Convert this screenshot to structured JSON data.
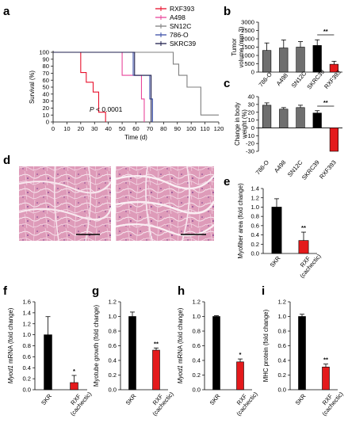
{
  "panel_letters": {
    "a": "a",
    "b": "b",
    "c": "c",
    "d": "d",
    "e": "e",
    "f": "f",
    "g": "g",
    "h": "h",
    "i": "i"
  },
  "colors": {
    "RXF393": "#e8112d",
    "A498": "#e8459a",
    "SN12C": "#7f7f7f",
    "786-O": "#3b4fa8",
    "SKRC39": "#1f1f4d",
    "gray_bar": "#6f6f6f",
    "black_bar": "#000000",
    "red_bar": "#e41a1c",
    "he_stain": "#d98fb0"
  },
  "significance": {
    "b": "**",
    "c": "**",
    "e": "**",
    "f": "*",
    "g": "**",
    "h": "*",
    "i": "**"
  },
  "annotations": {
    "pvalue_italic": "P",
    "pvalue_rest": " < 0.0001"
  },
  "chart_data": [
    {
      "panel": "a",
      "type": "line",
      "step": true,
      "xlabel": "Time (d)",
      "ylabel": "Survival (%)",
      "xlim": [
        0,
        120
      ],
      "ylim": [
        0,
        100
      ],
      "xticks": [
        0,
        10,
        20,
        30,
        40,
        50,
        60,
        70,
        80,
        90,
        100,
        110,
        120
      ],
      "yticks": [
        0,
        10,
        20,
        30,
        40,
        50,
        60,
        70,
        80,
        90,
        100
      ],
      "series": [
        {
          "name": "RXF393",
          "x": [
            0,
            20,
            24,
            29,
            33,
            38
          ],
          "y": [
            100,
            71,
            57,
            43,
            14,
            0
          ]
        },
        {
          "name": "A498",
          "x": [
            0,
            50,
            64,
            66
          ],
          "y": [
            100,
            67,
            33,
            0
          ]
        },
        {
          "name": "SN12C",
          "x": [
            0,
            87,
            91,
            97,
            107,
            113,
            120
          ],
          "y": [
            100,
            83,
            67,
            50,
            10,
            10,
            10
          ]
        },
        {
          "name": "786-O",
          "x": [
            0,
            58,
            70,
            72
          ],
          "y": [
            100,
            67,
            33,
            0
          ]
        },
        {
          "name": "SKRC39",
          "x": [
            0,
            59,
            71
          ],
          "y": [
            100,
            67,
            0
          ]
        }
      ]
    },
    {
      "panel": "b",
      "type": "bar",
      "ylabel": "Tumor volume (mm 3)",
      "ylim": [
        0,
        3000
      ],
      "yticks": [
        0,
        500,
        1000,
        1500,
        2000,
        2500,
        3000
      ],
      "categories": [
        "786-O",
        "A498",
        "SN12C",
        "SKRC39",
        "RXF393"
      ],
      "values": [
        1300,
        1450,
        1500,
        1600,
        470
      ],
      "errors": [
        450,
        480,
        330,
        340,
        180
      ]
    },
    {
      "panel": "c",
      "type": "bar",
      "ylabel": "Change in body weight (%)",
      "ylim": [
        -30,
        40
      ],
      "yticks": [
        -30,
        -20,
        -10,
        0,
        10,
        20,
        30,
        40
      ],
      "categories": [
        "786-O",
        "A498",
        "SN12C",
        "SKRC39",
        "RXF393"
      ],
      "values": [
        29,
        24,
        26,
        19,
        -30
      ],
      "errors": [
        3,
        2,
        3,
        3,
        0
      ]
    },
    {
      "panel": "e",
      "type": "bar",
      "ylabel": "Myofiber area (fold change)",
      "ylim": [
        0,
        1.4
      ],
      "yticks": [
        0,
        0.2,
        0.4,
        0.6,
        0.8,
        1.0,
        1.2,
        1.4
      ],
      "categories": [
        "SKR",
        "RXF (cachectic)"
      ],
      "values": [
        1.0,
        0.28
      ],
      "errors": [
        0.18,
        0.18
      ]
    },
    {
      "panel": "f",
      "type": "bar",
      "ylabel_italic": "Myod1",
      "ylabel": " mRNA (fold change)",
      "ylim": [
        0,
        1.6
      ],
      "yticks": [
        0,
        0.2,
        0.4,
        0.6,
        0.8,
        1.0,
        1.2,
        1.4,
        1.6
      ],
      "categories": [
        "SKR",
        "RXF (cachectic)"
      ],
      "values": [
        1.0,
        0.13
      ],
      "errors": [
        0.33,
        0.13
      ]
    },
    {
      "panel": "g",
      "type": "bar",
      "ylabel": "Myotube growth (fold change)",
      "ylim": [
        0,
        1.2
      ],
      "yticks": [
        0,
        0.2,
        0.4,
        0.6,
        0.8,
        1.0,
        1.2
      ],
      "categories": [
        "SKR",
        "RXF (cachectic)"
      ],
      "values": [
        1.0,
        0.54
      ],
      "errors": [
        0.06,
        0.03
      ]
    },
    {
      "panel": "h",
      "type": "bar",
      "ylabel_italic": "Myod1",
      "ylabel": " mRNA (fold change)",
      "ylim": [
        0,
        1.2
      ],
      "yticks": [
        0,
        0.2,
        0.4,
        0.6,
        0.8,
        1.0,
        1.2
      ],
      "categories": [
        "SKR",
        "RXF (cachectic)"
      ],
      "values": [
        1.0,
        0.38
      ],
      "errors": [
        0.01,
        0.04
      ]
    },
    {
      "panel": "i",
      "type": "bar",
      "ylabel": "MHC protein (fold change)",
      "ylim": [
        0,
        1.2
      ],
      "yticks": [
        0,
        0.2,
        0.4,
        0.6,
        0.8,
        1.0,
        1.2
      ],
      "categories": [
        "SKR",
        "RXF (cachectic)"
      ],
      "values": [
        1.0,
        0.31
      ],
      "errors": [
        0.03,
        0.04
      ]
    }
  ]
}
